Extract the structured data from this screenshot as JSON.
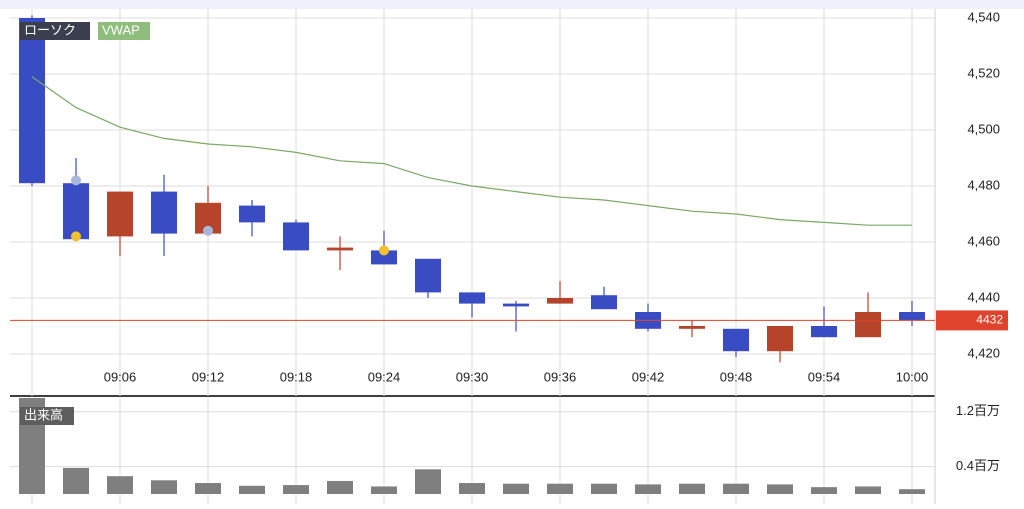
{
  "chart_data": [
    {
      "type": "candlestick",
      "categories": [
        null,
        null,
        "09:06",
        null,
        "09:12",
        null,
        "09:18",
        null,
        "09:24",
        null,
        "09:30",
        null,
        "09:36",
        null,
        "09:42",
        null,
        "09:48",
        null,
        "09:54",
        null,
        "10:00"
      ],
      "series": [
        {
          "name": "ローソク",
          "up_color": "#b5442b",
          "down_color": "#3a4cc4",
          "open": [
            4540,
            4481,
            4462,
            4478,
            4463,
            4473,
            4467,
            4457,
            4457,
            4454,
            4442,
            4438,
            4438,
            4441,
            4435,
            4429,
            4429,
            4421,
            4430,
            4426,
            4435
          ],
          "high": [
            4541,
            4490,
            4478,
            4484,
            4480,
            4475,
            4468,
            4462,
            4464,
            4454,
            4442,
            4439,
            4446,
            4444,
            4438,
            4432,
            4429,
            4430,
            4437,
            4442,
            4439
          ],
          "low": [
            4480,
            4461,
            4455,
            4455,
            4463,
            4462,
            4457,
            4450,
            4452,
            4440,
            4433,
            4428,
            4438,
            4436,
            4428,
            4426,
            4419,
            4417,
            4426,
            4426,
            4430
          ],
          "close": [
            4481,
            4461,
            4478,
            4463,
            4474,
            4467,
            4457,
            4458,
            4452,
            4442,
            4438,
            4437,
            4440,
            4436,
            4429,
            4430,
            4421,
            4430,
            4426,
            4435,
            4432
          ]
        },
        {
          "name": "VWAP",
          "color": "#7aa866",
          "values": [
            4519,
            4508,
            4501,
            4497,
            4495,
            4494,
            4492,
            4489,
            4488,
            4483,
            4480,
            4478,
            4476,
            4475,
            4473,
            4471,
            4470,
            4468,
            4467,
            4466,
            4466
          ]
        }
      ],
      "markers": [
        {
          "index": 1,
          "value": 4482,
          "color": "#a9b6dc"
        },
        {
          "index": 1,
          "value": 4462,
          "color": "#f2c12e"
        },
        {
          "index": 4,
          "value": 4464,
          "color": "#a9b6dc"
        },
        {
          "index": 8,
          "value": 4457,
          "color": "#f2c12e"
        }
      ],
      "last_price": 4432,
      "last_price_color": "#e0432c",
      "ylim": [
        4405,
        4543
      ],
      "yticks": [
        {
          "value": 4420,
          "label": "4,420"
        },
        {
          "value": 4440,
          "label": "4,440"
        },
        {
          "value": 4460,
          "label": "4,460"
        },
        {
          "value": 4480,
          "label": "4,480"
        },
        {
          "value": 4500,
          "label": "4,500"
        },
        {
          "value": 4520,
          "label": "4,520"
        },
        {
          "value": 4540,
          "label": "4,540"
        }
      ],
      "grid": true
    },
    {
      "type": "bar",
      "title": "出来高",
      "color": "#7f7f7f",
      "values": [
        1.4,
        0.38,
        0.26,
        0.2,
        0.16,
        0.12,
        0.13,
        0.19,
        0.11,
        0.36,
        0.16,
        0.15,
        0.15,
        0.15,
        0.14,
        0.15,
        0.15,
        0.14,
        0.1,
        0.11,
        0.07
      ],
      "ylim": [
        0,
        1.4
      ],
      "yticks": [
        {
          "value": 0.4,
          "label": "0.4百万"
        },
        {
          "value": 1.2,
          "label": "1.2百万"
        }
      ],
      "grid": true
    }
  ]
}
